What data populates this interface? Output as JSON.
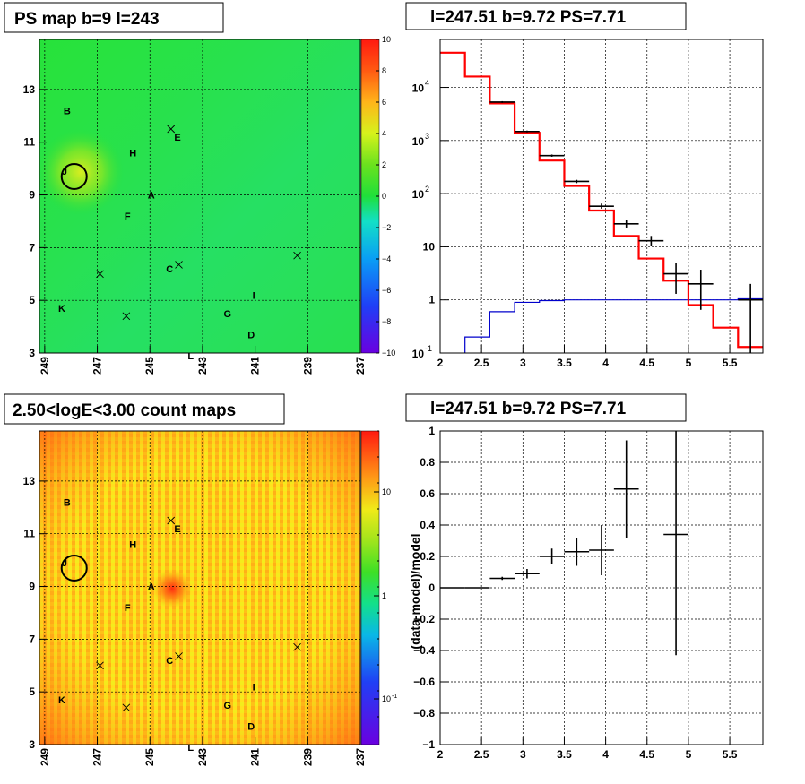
{
  "panels": {
    "ps_map": {
      "title": "PS map b=9 l=243",
      "x_ticks": [
        "249",
        "247",
        "245",
        "243",
        "241",
        "239",
        "237"
      ],
      "y_ticks": [
        "5",
        "7",
        "9",
        "11",
        "13"
      ],
      "y_bottom_label": "3",
      "colorbar_ticks": [
        "10",
        "8",
        "6",
        "4",
        "2",
        "0",
        "−2",
        "−4",
        "−6",
        "−8",
        "−10"
      ],
      "colorbar_range": [
        -10,
        10
      ]
    },
    "count_map": {
      "title": "2.50<logE<3.00 count maps",
      "x_ticks": [
        "249",
        "247",
        "245",
        "243",
        "241",
        "239",
        "237"
      ],
      "y_ticks": [
        "5",
        "7",
        "9",
        "11",
        "13"
      ],
      "y_bottom_label": "3",
      "colorbar_ticks": [
        "10",
        "1",
        "10"
      ],
      "colorbar_tick_exp": "-1"
    },
    "spectrum": {
      "title": "l=247.51 b=9.72 PS=7.71"
    },
    "residual": {
      "title": "l=247.51 b=9.72 PS=7.71",
      "ylabel": "(data-model)/model"
    }
  },
  "map_markers": [
    {
      "label": "A",
      "l": 244.95,
      "b": 9.0
    },
    {
      "label": "B",
      "l": 248.15,
      "b": 12.2
    },
    {
      "label": "C",
      "l": 244.25,
      "b": 6.2
    },
    {
      "label": "D",
      "l": 241.15,
      "b": 3.7
    },
    {
      "label": "E",
      "l": 243.95,
      "b": 11.2
    },
    {
      "label": "F",
      "l": 245.85,
      "b": 8.2
    },
    {
      "label": "G",
      "l": 242.05,
      "b": 4.5
    },
    {
      "label": "H",
      "l": 245.65,
      "b": 10.6
    },
    {
      "label": "I",
      "l": 241.05,
      "b": 5.2
    },
    {
      "label": "J",
      "l": 248.25,
      "b": 9.9
    },
    {
      "label": "K",
      "l": 248.35,
      "b": 4.7
    },
    {
      "label": "L",
      "l": 243.45,
      "b": 2.9
    }
  ],
  "map_crosses": [
    {
      "l": 244.2,
      "b": 11.5
    },
    {
      "l": 246.9,
      "b": 6.0
    },
    {
      "l": 245.9,
      "b": 4.4
    },
    {
      "l": 243.9,
      "b": 6.35
    },
    {
      "l": 239.4,
      "b": 6.7
    }
  ],
  "source_circle": {
    "l": 247.88,
    "b": 9.7
  },
  "chart_data": [
    {
      "type": "line",
      "name": "spectrum",
      "title": "l=247.51 b=9.72 PS=7.71",
      "xlim": [
        2,
        5.9
      ],
      "ylim": [
        0.1,
        80000
      ],
      "log_y": true,
      "x_ticks": [
        "2",
        "2.5",
        "3",
        "3.5",
        "4",
        "4.5",
        "5",
        "5.5"
      ],
      "y_ticks": [
        {
          "label": "1",
          "value": 1
        },
        {
          "label": "10",
          "value": 10
        }
      ],
      "y_ticks_pow": [
        {
          "base": "10",
          "exp": "-1",
          "value": 0.1
        },
        {
          "base": "10",
          "exp": "2",
          "value": 100
        },
        {
          "base": "10",
          "exp": "3",
          "value": 1000
        },
        {
          "base": "10",
          "exp": "4",
          "value": 10000
        }
      ],
      "model_total": {
        "color": "#ff0000",
        "edges": [
          2.0,
          2.3,
          2.6,
          2.9,
          3.2,
          3.5,
          3.8,
          4.1,
          4.4,
          4.7,
          5.0,
          5.3,
          5.6,
          5.9
        ],
        "values": [
          45000,
          16000,
          5000,
          1400,
          420,
          140,
          48,
          16,
          6.0,
          2.3,
          0.8,
          0.3,
          0.13
        ]
      },
      "model_source": {
        "color": "#0000cc",
        "edges": [
          2.0,
          2.3,
          2.6,
          2.9,
          3.2,
          3.5,
          3.8,
          4.1,
          4.4,
          4.7,
          5.0,
          5.3,
          5.6,
          5.9
        ],
        "values": [
          0.08,
          0.2,
          0.6,
          0.9,
          0.97,
          1.0,
          1.0,
          1.0,
          1.0,
          1.0,
          1.0,
          1.0,
          1.05
        ]
      },
      "data_points": [
        {
          "x": 2.75,
          "y": 5300,
          "xerr": 0.15,
          "ylo": 5100,
          "yhi": 5500
        },
        {
          "x": 3.05,
          "y": 1480,
          "xerr": 0.15,
          "ylo": 1420,
          "yhi": 1540
        },
        {
          "x": 3.35,
          "y": 520,
          "xerr": 0.15,
          "ylo": 495,
          "yhi": 545
        },
        {
          "x": 3.65,
          "y": 170,
          "xerr": 0.15,
          "ylo": 158,
          "yhi": 182
        },
        {
          "x": 3.95,
          "y": 58,
          "xerr": 0.15,
          "ylo": 52,
          "yhi": 65
        },
        {
          "x": 4.25,
          "y": 27,
          "xerr": 0.15,
          "ylo": 23,
          "yhi": 32
        },
        {
          "x": 4.55,
          "y": 13,
          "xerr": 0.15,
          "ylo": 10.5,
          "yhi": 16
        },
        {
          "x": 4.85,
          "y": 3.1,
          "xerr": 0.15,
          "ylo": 1.3,
          "yhi": 5.0
        },
        {
          "x": 5.15,
          "y": 2.0,
          "xerr": 0.15,
          "ylo": 0.65,
          "yhi": 3.7
        },
        {
          "x": 5.75,
          "y": 1.0,
          "xerr": 0.15,
          "ylo": 0.1,
          "yhi": 2.0
        }
      ]
    },
    {
      "type": "scatter",
      "name": "residual",
      "title": "l=247.51 b=9.72 PS=7.71",
      "ylabel": "(data-model)/model",
      "xlim": [
        2,
        5.9
      ],
      "ylim": [
        -1,
        1
      ],
      "x_ticks": [
        "2",
        "2.5",
        "3",
        "3.5",
        "4",
        "4.5",
        "5",
        "5.5"
      ],
      "y_ticks": [
        "1",
        "0.8",
        "0.6",
        "0.4",
        "0.2",
        "0",
        "−0.2",
        "−0.4",
        "−0.6",
        "−0.8",
        "−1"
      ],
      "points": [
        {
          "x": 2.15,
          "y": 0.0,
          "xerr": 0.15,
          "yerr": 0.0
        },
        {
          "x": 2.45,
          "y": 0.0,
          "xerr": 0.15,
          "yerr": 0.0
        },
        {
          "x": 2.75,
          "y": 0.06,
          "xerr": 0.15,
          "yerr": 0.01
        },
        {
          "x": 3.05,
          "y": 0.09,
          "xerr": 0.15,
          "yerr": 0.03
        },
        {
          "x": 3.35,
          "y": 0.2,
          "xerr": 0.15,
          "yerr": 0.05
        },
        {
          "x": 3.65,
          "y": 0.23,
          "xerr": 0.15,
          "yerr": 0.09
        },
        {
          "x": 3.95,
          "y": 0.24,
          "xerr": 0.15,
          "yerr": 0.16
        },
        {
          "x": 4.25,
          "y": 0.63,
          "xerr": 0.15,
          "yerr": 0.31
        },
        {
          "x": 4.85,
          "y": 0.34,
          "xerr": 0.15,
          "ylo": -0.43,
          "yhi": 1.0
        }
      ]
    }
  ]
}
